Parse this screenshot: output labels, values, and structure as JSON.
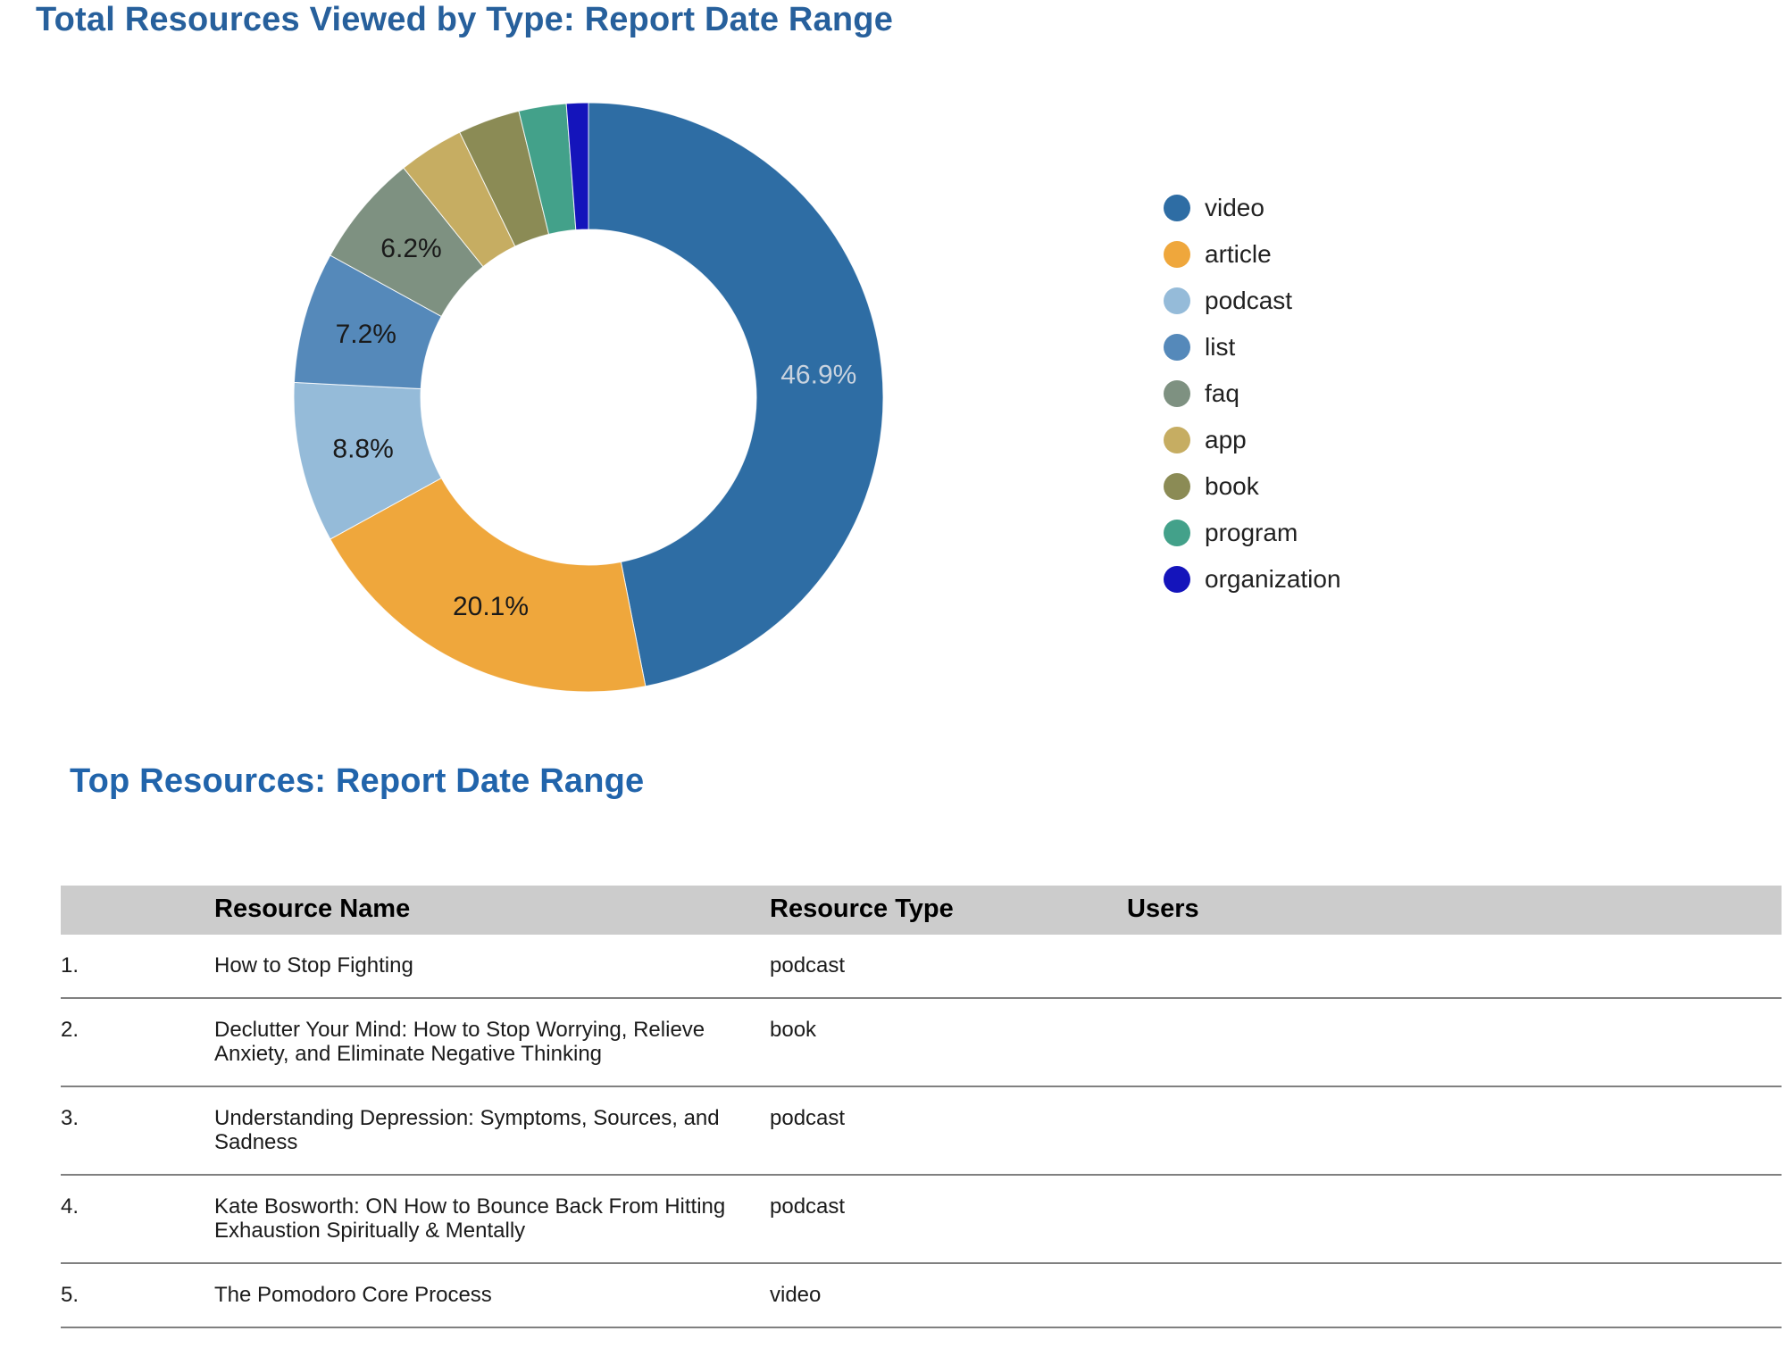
{
  "chart_section": {
    "title": "Total Resources Viewed by Type: Report Date Range"
  },
  "chart_data": {
    "type": "pie",
    "donut": true,
    "title": "Total Resources Viewed by Type: Report Date Range",
    "legend_position": "right",
    "start_angle_deg": 0,
    "inner_radius_ratio": 0.57,
    "series": [
      {
        "label": "video",
        "value": 46.9,
        "display": "46.9%",
        "color": "#2e6da4",
        "label_color": "#c9d3df"
      },
      {
        "label": "article",
        "value": 20.1,
        "display": "20.1%",
        "color": "#efa73c",
        "label_color": "#1a1a1a"
      },
      {
        "label": "podcast",
        "value": 8.8,
        "display": "8.8%",
        "color": "#95bbd9",
        "label_color": "#1a1a1a"
      },
      {
        "label": "list",
        "value": 7.2,
        "display": "7.2%",
        "color": "#5589ba",
        "label_color": "#1a1a1a"
      },
      {
        "label": "faq",
        "value": 6.2,
        "display": "6.2%",
        "color": "#7e9181",
        "label_color": "#1a1a1a"
      },
      {
        "label": "app",
        "value": 3.6,
        "display": "",
        "color": "#c6ad62",
        "label_color": "#1a1a1a"
      },
      {
        "label": "book",
        "value": 3.4,
        "display": "",
        "color": "#8b8b55",
        "label_color": "#1a1a1a"
      },
      {
        "label": "program",
        "value": 2.6,
        "display": "",
        "color": "#43a18a",
        "label_color": "#1a1a1a"
      },
      {
        "label": "organization",
        "value": 1.2,
        "display": "",
        "color": "#1414bb",
        "label_color": "#1a1a1a"
      }
    ]
  },
  "table_section": {
    "title": "Top Resources: Report Date Range",
    "columns": {
      "rank": "",
      "name": "Resource Name",
      "type": "Resource Type",
      "users": "Users"
    },
    "rows": [
      {
        "rank": "1.",
        "name": "How to Stop Fighting",
        "type": "podcast"
      },
      {
        "rank": "2.",
        "name": "Declutter Your Mind: How to Stop Worrying, Relieve Anxiety, and Eliminate Negative Thinking",
        "type": "book"
      },
      {
        "rank": "3.",
        "name": "Understanding Depression: Symptoms, Sources, and Sadness",
        "type": "podcast"
      },
      {
        "rank": "4.",
        "name": "Kate Bosworth: ON How to Bounce Back From Hitting Exhaustion Spiritually & Mentally",
        "type": "podcast"
      },
      {
        "rank": "5.",
        "name": "The Pomodoro Core Process",
        "type": "video"
      }
    ]
  }
}
